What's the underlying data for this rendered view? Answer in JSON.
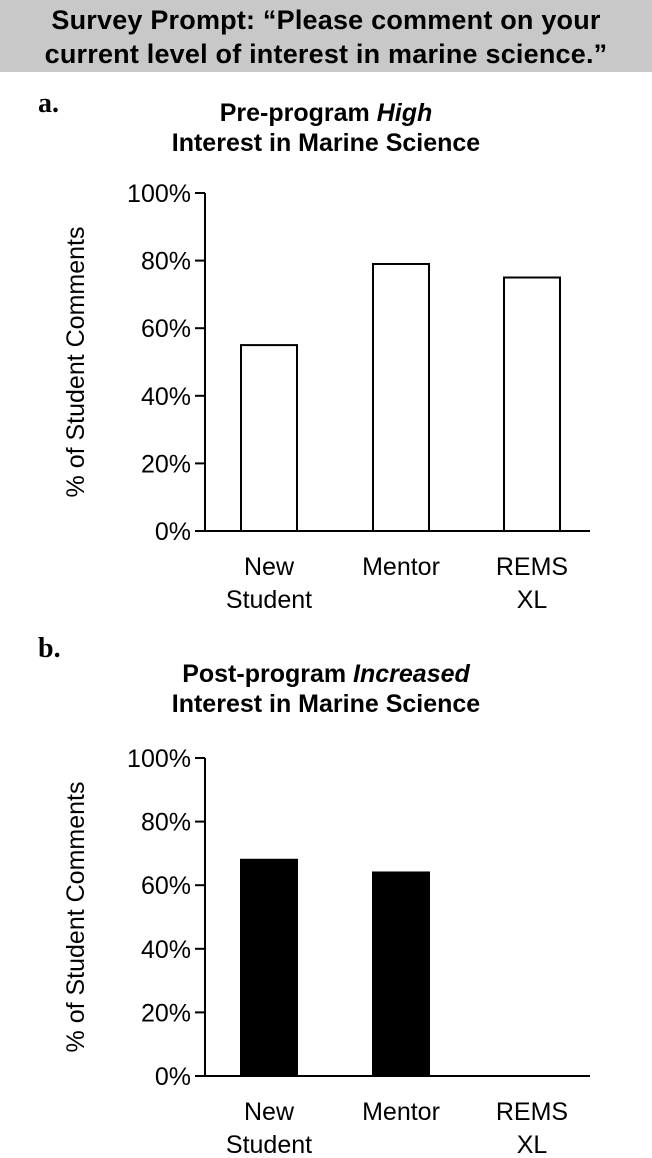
{
  "header": {
    "line1": "Survey Prompt: “Please comment on your",
    "line2": "current level of interest in marine science.”"
  },
  "chart_data": [
    {
      "panel": "a.",
      "type": "bar",
      "title_line1_prefix": "Pre-program ",
      "title_line1_emph": "High",
      "title_line2": "Interest in Marine Science",
      "ylabel": "% of Student Comments",
      "xlabel": "",
      "categories": [
        [
          "New",
          "Student"
        ],
        [
          "Mentor"
        ],
        [
          "REMS",
          "XL"
        ]
      ],
      "values": [
        55,
        79,
        75
      ],
      "ylim": [
        0,
        100
      ],
      "yticks": [
        "0%",
        "20%",
        "40%",
        "60%",
        "80%",
        "100%"
      ],
      "fill": "#ffffff",
      "stroke": "#000000",
      "grid": false
    },
    {
      "panel": "b.",
      "type": "bar",
      "title_line1_prefix": "Post-program ",
      "title_line1_emph": "Increased",
      "title_line2": "Interest in Marine Science",
      "ylabel": "% of Student Comments",
      "xlabel": "",
      "categories": [
        [
          "New",
          "Student"
        ],
        [
          "Mentor"
        ],
        [
          "REMS",
          "XL"
        ]
      ],
      "values": [
        68,
        64,
        0
      ],
      "ylim": [
        0,
        100
      ],
      "yticks": [
        "0%",
        "20%",
        "40%",
        "60%",
        "80%",
        "100%"
      ],
      "fill": "#000000",
      "stroke": "#000000",
      "grid": false
    }
  ]
}
